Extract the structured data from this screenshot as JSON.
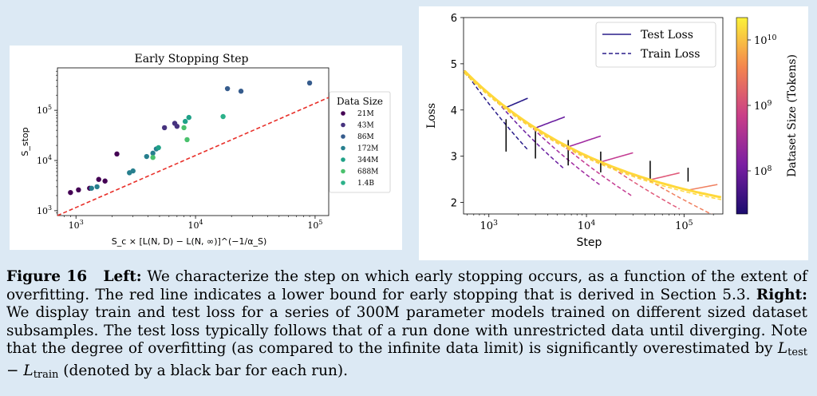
{
  "chart_data": [
    {
      "type": "scatter",
      "title": "Early Stopping Step",
      "xlabel": "S_c × [L(N, D) − L(N, ∞)]^(−1/α_S)",
      "ylabel": "S_stop",
      "xscale": "log",
      "yscale": "log",
      "xlim": [
        700,
        130000
      ],
      "ylim": [
        800,
        700000
      ],
      "xticks": [
        {
          "v": 1000,
          "b": "10",
          "e": "3"
        },
        {
          "v": 10000,
          "b": "10",
          "e": "4"
        },
        {
          "v": 100000,
          "b": "10",
          "e": "5"
        }
      ],
      "yticks": [
        {
          "v": 1000,
          "b": "10",
          "e": "3"
        },
        {
          "v": 10000,
          "b": "10",
          "e": "4"
        },
        {
          "v": 100000,
          "b": "10",
          "e": "5"
        }
      ],
      "legend": {
        "title": "Data Size",
        "position": "right"
      },
      "series": [
        {
          "name": "21M",
          "color": "#440154",
          "points": [
            [
              900,
              2300
            ],
            [
              1050,
              2600
            ],
            [
              1300,
              2800
            ],
            [
              1550,
              4200
            ],
            [
              1750,
              3900
            ],
            [
              2200,
              13500
            ]
          ]
        },
        {
          "name": "43M",
          "color": "#46327e",
          "points": [
            [
              5500,
              45000
            ],
            [
              6700,
              55000
            ],
            [
              7000,
              48000
            ]
          ]
        },
        {
          "name": "86M",
          "color": "#365c8d",
          "points": [
            [
              18500,
              270000
            ],
            [
              24000,
              240000
            ],
            [
              90000,
              350000
            ]
          ]
        },
        {
          "name": "172M",
          "color": "#277f8e",
          "points": [
            [
              2800,
              5700
            ],
            [
              3000,
              6200
            ],
            [
              3900,
              12000
            ],
            [
              4400,
              14000
            ],
            [
              4700,
              17000
            ],
            [
              1350,
              2800
            ],
            [
              1500,
              3000
            ]
          ]
        },
        {
          "name": "344M",
          "color": "#1fa187",
          "points": [
            [
              8200,
              60000
            ],
            [
              8800,
              72000
            ],
            [
              4900,
              18000
            ]
          ]
        },
        {
          "name": "688M",
          "color": "#4ac16d",
          "points": [
            [
              4400,
              11500
            ],
            [
              8000,
              45000
            ],
            [
              8500,
              26000
            ]
          ]
        },
        {
          "name": "1.4B",
          "color": "#2cb18a",
          "points": [
            [
              17000,
              75000
            ]
          ]
        }
      ],
      "bound_line": {
        "color": "#e8302a",
        "points": [
          [
            700,
            800
          ],
          [
            130000,
            180000
          ]
        ]
      }
    },
    {
      "type": "line",
      "xlabel": "Step",
      "ylabel": "Loss",
      "xscale": "log",
      "xlim": [
        550,
        250000
      ],
      "ylim": [
        1.75,
        6.0
      ],
      "xticks": [
        {
          "v": 1000,
          "b": "10",
          "e": "3"
        },
        {
          "v": 10000,
          "b": "10",
          "e": "4"
        },
        {
          "v": 100000,
          "b": "10",
          "e": "5"
        }
      ],
      "yticks": [
        2,
        3,
        4,
        5,
        6
      ],
      "legend": {
        "entries": [
          "Test Loss",
          "Train Loss"
        ],
        "position": "top-right"
      },
      "colorbar": {
        "label": "Dataset Size (Tokens)",
        "ticks": [
          {
            "b": "10",
            "e": "8"
          },
          {
            "b": "10",
            "e": "9"
          },
          {
            "b": "10",
            "e": "10"
          }
        ]
      },
      "runs": [
        {
          "color": "#2a1d8a",
          "diverge": 1500,
          "end": 2500,
          "bar_x": 1500,
          "bar_top": 3.8,
          "bar_bottom": 3.1
        },
        {
          "color": "#6a1fa0",
          "diverge": 3000,
          "end": 6000,
          "bar_x": 3000,
          "bar_top": 3.55,
          "bar_bottom": 2.95
        },
        {
          "color": "#a02ba0",
          "diverge": 6500,
          "end": 14000,
          "bar_x": 6500,
          "bar_top": 3.35,
          "bar_bottom": 2.8
        },
        {
          "color": "#c43c92",
          "diverge": 14000,
          "end": 30000,
          "bar_x": 14000,
          "bar_top": 3.1,
          "bar_bottom": 2.65
        },
        {
          "color": "#e05a7a",
          "diverge": 45000,
          "end": 90000,
          "bar_x": 45000,
          "bar_top": 2.9,
          "bar_bottom": 2.5
        },
        {
          "color": "#f08060",
          "diverge": 110000,
          "end": 220000,
          "bar_x": 110000,
          "bar_top": 2.75,
          "bar_bottom": 2.45
        },
        {
          "color": "#ffd83a",
          "diverge": null,
          "end": 240000
        }
      ]
    }
  ]
}
